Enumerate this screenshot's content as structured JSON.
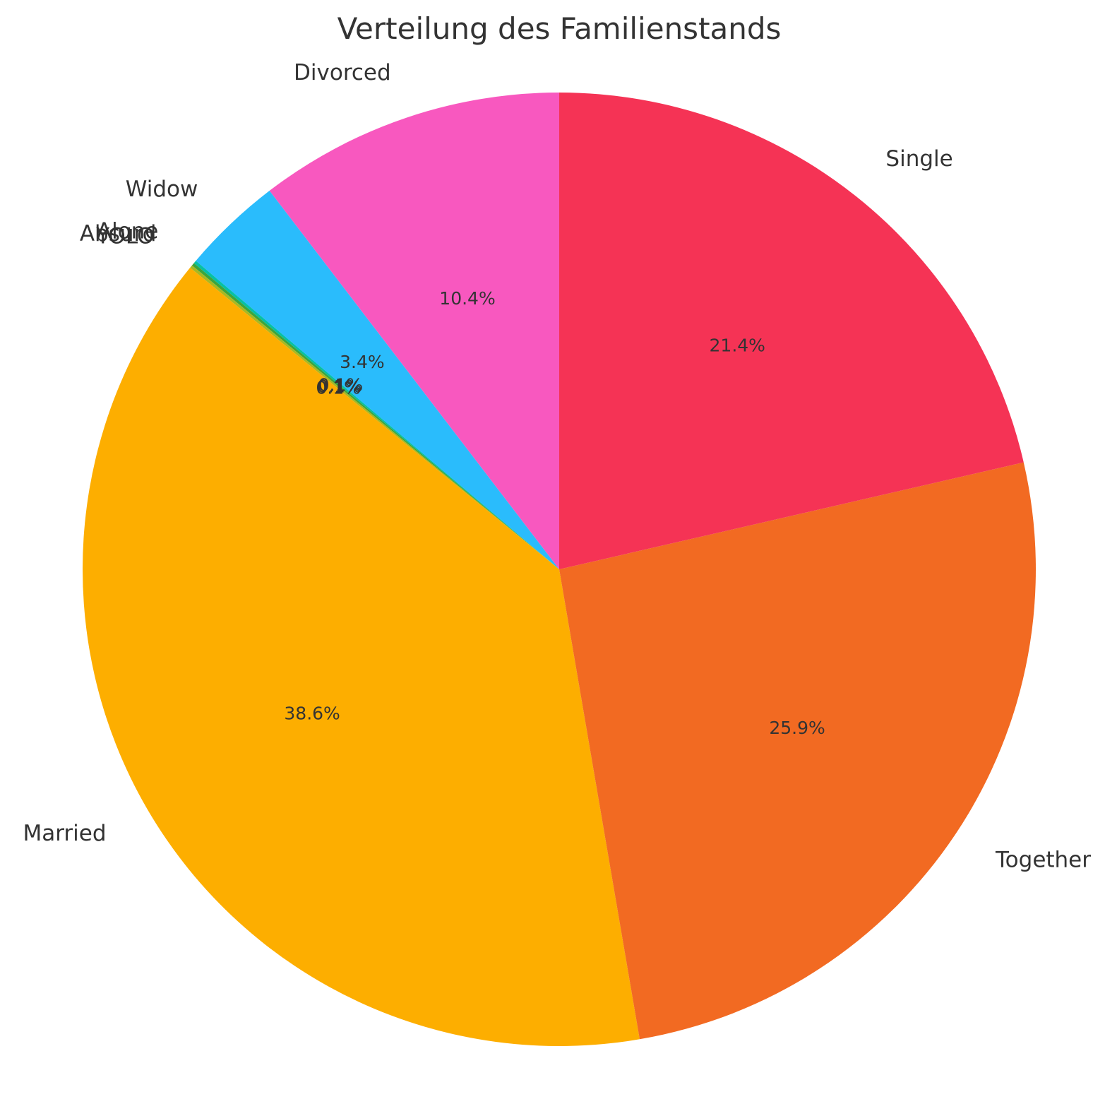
{
  "chart_data": {
    "type": "pie",
    "title": "Verteilung des Familienstands",
    "start_angle_deg": 90,
    "direction": "counterclockwise",
    "slices": [
      {
        "label": "Divorced",
        "value": 10.4,
        "pct_text": "10.4%",
        "color": "#f858bf"
      },
      {
        "label": "Widow",
        "value": 3.4,
        "pct_text": "3.4%",
        "color": "#2abcfc"
      },
      {
        "label": "Alone",
        "value": 0.1,
        "pct_text": "0.1%",
        "color": "#06c0a5"
      },
      {
        "label": "Absurd",
        "value": 0.1,
        "pct_text": "0.1%",
        "color": "#3ca53c"
      },
      {
        "label": "YOLO",
        "value": 0.1,
        "pct_text": "0.1%",
        "color": "#a8b821"
      },
      {
        "label": "Married",
        "value": 38.6,
        "pct_text": "38.6%",
        "color": "#fdae00"
      },
      {
        "label": "Together",
        "value": 25.9,
        "pct_text": "25.9%",
        "color": "#f26a22"
      },
      {
        "label": "Single",
        "value": 21.4,
        "pct_text": "21.4%",
        "color": "#f53355"
      }
    ]
  }
}
